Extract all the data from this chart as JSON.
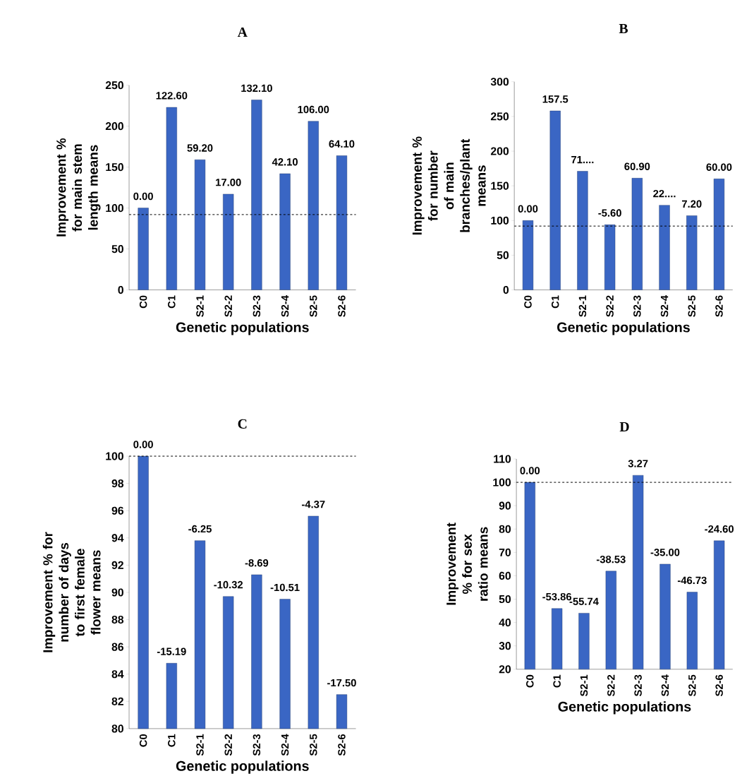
{
  "chart_data": [
    {
      "type": "bar",
      "title": "A",
      "ylabel": "Improvement % for main stem length means",
      "xlabel": "Genetic populations",
      "categories": [
        "C0",
        "C1",
        "S2-1",
        "S2-2",
        "S2-3",
        "S2-4",
        "S2-5",
        "S2-6"
      ],
      "values": [
        100,
        223,
        159,
        117,
        232,
        142,
        206,
        164
      ],
      "color": "#3a66c4",
      "ylim": [
        0,
        250
      ],
      "yticks": [
        0,
        50,
        100,
        150,
        200,
        250
      ],
      "ref_lines": [
        {
          "axis": "y",
          "value": 92,
          "line_style": "dashed"
        }
      ],
      "annotations": [
        {
          "text": "0.00",
          "x": "C0",
          "y": 100
        },
        {
          "text": "122.60",
          "x": "C1",
          "y": 223
        },
        {
          "text": "59.20",
          "x": "S2-1",
          "y": 159
        },
        {
          "text": "17.00",
          "x": "S2-2",
          "y": 117
        },
        {
          "text": "132.10",
          "x": "S2-3",
          "y": 232
        },
        {
          "text": "42.10",
          "x": "S2-4",
          "y": 142
        },
        {
          "text": "106.00",
          "x": "S2-5",
          "y": 206
        },
        {
          "text": "64.10",
          "x": "S2-6",
          "y": 164
        }
      ]
    },
    {
      "type": "bar",
      "title": "B",
      "ylabel": "Improvement % for number of main branches/plant means",
      "xlabel": "Genetic populations",
      "categories": [
        "C0",
        "C1",
        "S2-1",
        "S2-2",
        "S2-3",
        "S2-4",
        "S2-5",
        "S2-6"
      ],
      "values": [
        100,
        258,
        171,
        94,
        161,
        122,
        107,
        160
      ],
      "color": "#3a66c4",
      "ylim": [
        0,
        300
      ],
      "yticks": [
        0,
        50,
        100,
        150,
        200,
        250,
        300
      ],
      "ref_lines": [
        {
          "axis": "y",
          "value": 92,
          "line_style": "dashed"
        }
      ],
      "annotations": [
        {
          "text": "0.00",
          "x": "C0",
          "y": 100
        },
        {
          "text": "157.5",
          "x": "C1",
          "y": 258
        },
        {
          "text": "71....",
          "x": "S2-1",
          "y": 171
        },
        {
          "text": "-5.60",
          "x": "S2-2",
          "y": 94
        },
        {
          "text": "60.90",
          "x": "S2-3",
          "y": 161
        },
        {
          "text": "22....",
          "x": "S2-4",
          "y": 122
        },
        {
          "text": "7.20",
          "x": "S2-5",
          "y": 107
        },
        {
          "text": "60.00",
          "x": "S2-6",
          "y": 160
        }
      ]
    },
    {
      "type": "bar",
      "title": "C",
      "ylabel": "Improvement % for number of days to first female flower means",
      "xlabel": "Genetic populations",
      "categories": [
        "C0",
        "C1",
        "S2-1",
        "S2-2",
        "S2-3",
        "S2-4",
        "S2-5",
        "S2-6"
      ],
      "values": [
        100,
        84.8,
        93.8,
        89.7,
        91.3,
        89.5,
        95.6,
        82.5
      ],
      "color": "#3a66c4",
      "ylim": [
        80,
        100
      ],
      "yticks": [
        80,
        82,
        84,
        86,
        88,
        90,
        92,
        94,
        96,
        98,
        100
      ],
      "ref_lines": [
        {
          "axis": "y",
          "value": 100,
          "line_style": "dashed"
        }
      ],
      "annotations": [
        {
          "text": "0.00",
          "x": "C0",
          "y": 100
        },
        {
          "text": "-15.19",
          "x": "C1",
          "y": 84.8
        },
        {
          "text": "-6.25",
          "x": "S2-1",
          "y": 93.8
        },
        {
          "text": "-10.32",
          "x": "S2-2",
          "y": 89.7
        },
        {
          "text": "-8.69",
          "x": "S2-3",
          "y": 91.3
        },
        {
          "text": "-10.51",
          "x": "S2-4",
          "y": 89.5
        },
        {
          "text": "-4.37",
          "x": "S2-5",
          "y": 95.6
        },
        {
          "text": "-17.50",
          "x": "S2-6",
          "y": 82.5
        }
      ]
    },
    {
      "type": "bar",
      "title": "D",
      "ylabel": "Improvement % for sex ratio means",
      "xlabel": "Genetic populations",
      "categories": [
        "C0",
        "C1",
        "S2-1",
        "S2-2",
        "S2-3",
        "S2-4",
        "S2-5",
        "S2-6"
      ],
      "values": [
        100,
        46,
        44,
        62,
        103,
        65,
        53,
        75
      ],
      "color": "#3a66c4",
      "ylim": [
        20,
        110
      ],
      "yticks": [
        20,
        30,
        40,
        50,
        60,
        70,
        80,
        90,
        100,
        110
      ],
      "ref_lines": [
        {
          "axis": "y",
          "value": 100,
          "line_style": "dashed"
        }
      ],
      "annotations": [
        {
          "text": "0.00",
          "x": "C0",
          "y": 100
        },
        {
          "text": "-53.86",
          "x": "C1",
          "y": 46
        },
        {
          "text": "-55.74",
          "x": "S2-1",
          "y": 44
        },
        {
          "text": "-38.53",
          "x": "S2-2",
          "y": 62
        },
        {
          "text": "3.27",
          "x": "S2-3",
          "y": 103
        },
        {
          "text": "-35.00",
          "x": "S2-4",
          "y": 65
        },
        {
          "text": "-46.73",
          "x": "S2-5",
          "y": 53
        },
        {
          "text": "-24.60",
          "x": "S2-6",
          "y": 75
        }
      ]
    }
  ]
}
